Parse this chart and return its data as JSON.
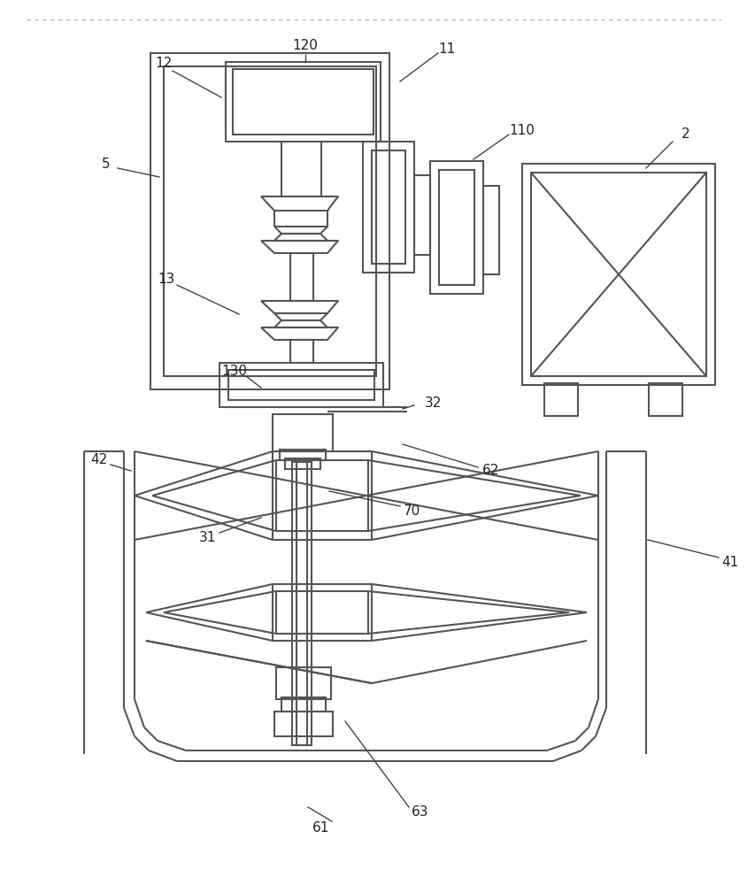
{
  "bg_color": "#ffffff",
  "lc": "#555555",
  "lc2": "#7a9e7e",
  "lw": 1.5,
  "lw_thin": 1.0,
  "ann_lw": 1.0,
  "ann_color": "#444444",
  "label_color": "#222222",
  "label_fs": 11,
  "dashed_top": true
}
